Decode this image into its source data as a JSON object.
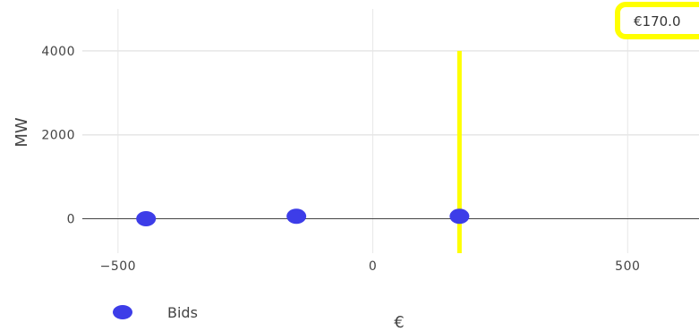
{
  "chart_data": {
    "type": "scatter",
    "xlabel": "€",
    "ylabel": "MW",
    "xlim": [
      -570,
      640
    ],
    "ylim": [
      -820,
      5000
    ],
    "x_ticks": [
      -500,
      0,
      500
    ],
    "x_tick_labels": [
      "−500",
      "0",
      "500"
    ],
    "y_ticks": [
      0,
      2000,
      4000
    ],
    "y_tick_labels": [
      "0",
      "2000",
      "4000"
    ],
    "grid": true,
    "zero_line": true,
    "legend_position": "bottom-left",
    "series": [
      {
        "name": "Bids",
        "color": "#3d3de8",
        "marker": "circle",
        "points": [
          {
            "x": -445,
            "y": 0
          },
          {
            "x": -150,
            "y": 60
          },
          {
            "x": 170,
            "y": 60
          }
        ]
      }
    ],
    "vertical_marker": {
      "x": 170,
      "y_from": -820,
      "y_to": 4000,
      "color": "#ffff00"
    },
    "annotation": {
      "text": "€170.0",
      "border_color": "#ffff00"
    }
  }
}
